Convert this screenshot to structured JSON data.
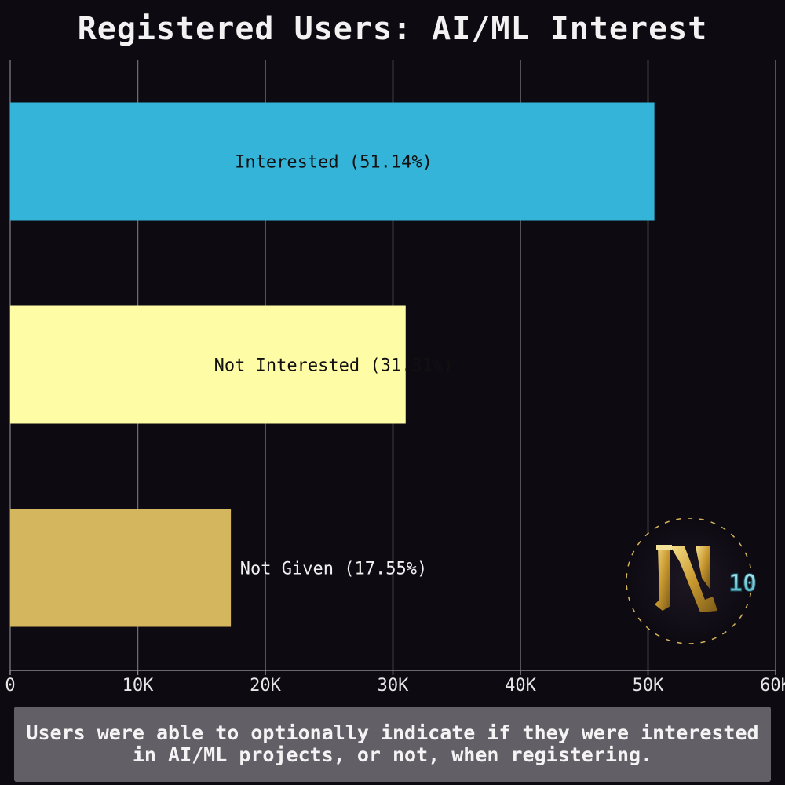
{
  "chart_data": {
    "type": "bar",
    "orientation": "horizontal",
    "title": "Registered Users: AI/ML Interest",
    "categories": [
      "Interested",
      "Not Interested",
      "Not Given"
    ],
    "values": [
      50500,
      31000,
      17300
    ],
    "bar_labels": [
      "Interested (51.14%)",
      "Not Interested (31.31%)",
      "Not Given (17.55%)"
    ],
    "colors": [
      "#34b4d8",
      "#fffca6",
      "#d4b65e"
    ],
    "label_colors": [
      "#111111",
      "#111111",
      "#f0f0f0"
    ],
    "xlim": [
      0,
      60000
    ],
    "xticks": [
      0,
      10000,
      20000,
      30000,
      40000,
      50000,
      60000
    ],
    "xtick_labels": [
      "0",
      "10K",
      "20K",
      "30K",
      "40K",
      "50K",
      "60K"
    ],
    "grid": true,
    "xlabel": "",
    "ylabel": ""
  },
  "caption": "Users were able to optionally indicate if they were interested in AI/ML projects, or not, when registering.",
  "logo": {
    "icon": "hackathon-10-logo",
    "number": "10"
  }
}
